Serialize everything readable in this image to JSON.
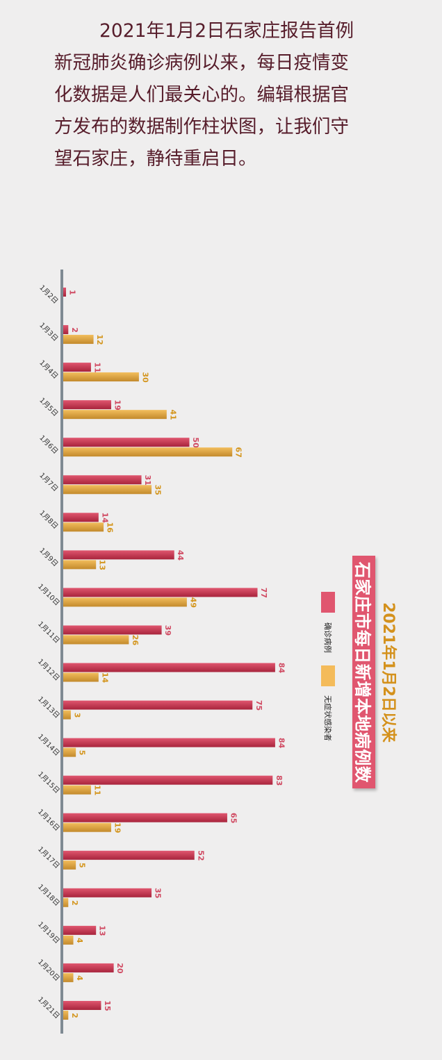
{
  "intro": {
    "lines": [
      "2021年1月2日石家庄报告首例",
      "新冠肺炎确诊病例以来，每日疫情变",
      "化数据是人们最关心的。编辑根据官",
      "方发布的数据制作柱状图，让我们守",
      "望石家庄，静待重启日。"
    ]
  },
  "chart_data": {
    "type": "bar",
    "orientation": "horizontal",
    "title": "石家庄市每日新增本地病例数",
    "subtitle": "2021年1月2日以来",
    "categories": [
      "1月2日",
      "1月3日",
      "1月4日",
      "1月5日",
      "1月6日",
      "1月7日",
      "1月8日",
      "1月9日",
      "1月10日",
      "1月11日",
      "1月12日",
      "1月13日",
      "1月14日",
      "1月15日",
      "1月16日",
      "1月17日",
      "1月18日",
      "1月19日",
      "1月20日",
      "1月21日"
    ],
    "series": [
      {
        "name": "确诊病例",
        "color": "#c8344f",
        "values": [
          1,
          2,
          11,
          19,
          50,
          31,
          14,
          44,
          77,
          39,
          84,
          75,
          84,
          83,
          65,
          52,
          35,
          13,
          20,
          15
        ]
      },
      {
        "name": "无症状感染者",
        "color": "#e3a640",
        "values": [
          null,
          12,
          30,
          41,
          67,
          35,
          16,
          13,
          49,
          26,
          14,
          3,
          5,
          11,
          19,
          5,
          2,
          4,
          4,
          2
        ]
      }
    ],
    "xlim": [
      0,
      85
    ],
    "grid": false,
    "data_labels": true,
    "legend_placement": "right"
  }
}
